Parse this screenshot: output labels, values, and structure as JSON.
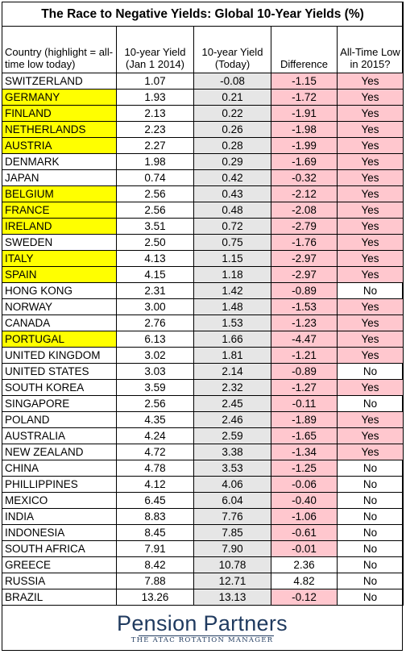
{
  "title": "The Race to Negative Yields: Global 10-Year Yields (%)",
  "headers": {
    "country": "Country (highlight = all-time low today)",
    "jan2014": "10-year Yield (Jan 1 2014)",
    "today": "10-year Yield (Today)",
    "difference": "Difference",
    "alltime": "All-Time Low in 2015?"
  },
  "colors": {
    "highlight": "#ffff00",
    "negative": "#ffc7ce",
    "today_col": "#e6e6e6",
    "brand": "#1f3a5f"
  },
  "rows": [
    {
      "country": "SWITZERLAND",
      "jan2014": "1.07",
      "today": "-0.08",
      "difference": "-1.15",
      "alltime": "Yes",
      "highlight": false
    },
    {
      "country": "GERMANY",
      "jan2014": "1.93",
      "today": "0.21",
      "difference": "-1.72",
      "alltime": "Yes",
      "highlight": true
    },
    {
      "country": "FINLAND",
      "jan2014": "2.13",
      "today": "0.22",
      "difference": "-1.91",
      "alltime": "Yes",
      "highlight": true
    },
    {
      "country": "NETHERLANDS",
      "jan2014": "2.23",
      "today": "0.26",
      "difference": "-1.98",
      "alltime": "Yes",
      "highlight": true
    },
    {
      "country": "AUSTRIA",
      "jan2014": "2.27",
      "today": "0.28",
      "difference": "-1.99",
      "alltime": "Yes",
      "highlight": true
    },
    {
      "country": "DENMARK",
      "jan2014": "1.98",
      "today": "0.29",
      "difference": "-1.69",
      "alltime": "Yes",
      "highlight": false
    },
    {
      "country": "JAPAN",
      "jan2014": "0.74",
      "today": "0.42",
      "difference": "-0.32",
      "alltime": "Yes",
      "highlight": false
    },
    {
      "country": "BELGIUM",
      "jan2014": "2.56",
      "today": "0.43",
      "difference": "-2.12",
      "alltime": "Yes",
      "highlight": true
    },
    {
      "country": "FRANCE",
      "jan2014": "2.56",
      "today": "0.48",
      "difference": "-2.08",
      "alltime": "Yes",
      "highlight": true
    },
    {
      "country": "IRELAND",
      "jan2014": "3.51",
      "today": "0.72",
      "difference": "-2.79",
      "alltime": "Yes",
      "highlight": true
    },
    {
      "country": "SWEDEN",
      "jan2014": "2.50",
      "today": "0.75",
      "difference": "-1.76",
      "alltime": "Yes",
      "highlight": false
    },
    {
      "country": "ITALY",
      "jan2014": "4.13",
      "today": "1.15",
      "difference": "-2.97",
      "alltime": "Yes",
      "highlight": true
    },
    {
      "country": "SPAIN",
      "jan2014": "4.15",
      "today": "1.18",
      "difference": "-2.97",
      "alltime": "Yes",
      "highlight": true
    },
    {
      "country": "HONG KONG",
      "jan2014": "2.31",
      "today": "1.42",
      "difference": "-0.89",
      "alltime": "No",
      "highlight": false
    },
    {
      "country": "NORWAY",
      "jan2014": "3.00",
      "today": "1.48",
      "difference": "-1.53",
      "alltime": "Yes",
      "highlight": false
    },
    {
      "country": "CANADA",
      "jan2014": "2.76",
      "today": "1.53",
      "difference": "-1.23",
      "alltime": "Yes",
      "highlight": false
    },
    {
      "country": "PORTUGAL",
      "jan2014": "6.13",
      "today": "1.66",
      "difference": "-4.47",
      "alltime": "Yes",
      "highlight": true
    },
    {
      "country": "UNITED KINGDOM",
      "jan2014": "3.02",
      "today": "1.81",
      "difference": "-1.21",
      "alltime": "Yes",
      "highlight": false
    },
    {
      "country": "UNITED STATES",
      "jan2014": "3.03",
      "today": "2.14",
      "difference": "-0.89",
      "alltime": "No",
      "highlight": false
    },
    {
      "country": "SOUTH KOREA",
      "jan2014": "3.59",
      "today": "2.32",
      "difference": "-1.27",
      "alltime": "Yes",
      "highlight": false
    },
    {
      "country": "SINGAPORE",
      "jan2014": "2.56",
      "today": "2.45",
      "difference": "-0.11",
      "alltime": "No",
      "highlight": false
    },
    {
      "country": "POLAND",
      "jan2014": "4.35",
      "today": "2.46",
      "difference": "-1.89",
      "alltime": "Yes",
      "highlight": false
    },
    {
      "country": "AUSTRALIA",
      "jan2014": "4.24",
      "today": "2.59",
      "difference": "-1.65",
      "alltime": "Yes",
      "highlight": false
    },
    {
      "country": "NEW ZEALAND",
      "jan2014": "4.72",
      "today": "3.38",
      "difference": "-1.34",
      "alltime": "Yes",
      "highlight": false
    },
    {
      "country": "CHINA",
      "jan2014": "4.78",
      "today": "3.53",
      "difference": "-1.25",
      "alltime": "No",
      "highlight": false
    },
    {
      "country": "PHILLIPPINES",
      "jan2014": "4.12",
      "today": "4.06",
      "difference": "-0.06",
      "alltime": "No",
      "highlight": false
    },
    {
      "country": "MEXICO",
      "jan2014": "6.45",
      "today": "6.04",
      "difference": "-0.40",
      "alltime": "No",
      "highlight": false
    },
    {
      "country": "INDIA",
      "jan2014": "8.83",
      "today": "7.76",
      "difference": "-1.06",
      "alltime": "No",
      "highlight": false
    },
    {
      "country": "INDONESIA",
      "jan2014": "8.45",
      "today": "7.85",
      "difference": "-0.61",
      "alltime": "No",
      "highlight": false
    },
    {
      "country": "SOUTH AFRICA",
      "jan2014": "7.91",
      "today": "7.90",
      "difference": "-0.01",
      "alltime": "No",
      "highlight": false
    },
    {
      "country": "GREECE",
      "jan2014": "8.42",
      "today": "10.78",
      "difference": "2.36",
      "alltime": "No",
      "highlight": false
    },
    {
      "country": "RUSSIA",
      "jan2014": "7.88",
      "today": "12.71",
      "difference": "4.82",
      "alltime": "No",
      "highlight": false
    },
    {
      "country": "BRAZIL",
      "jan2014": "13.26",
      "today": "13.13",
      "difference": "-0.12",
      "alltime": "No",
      "highlight": false
    }
  ],
  "footer": {
    "logo_text": "Pension Partners",
    "tagline": "THE ATAC ROTATION MANAGER"
  }
}
